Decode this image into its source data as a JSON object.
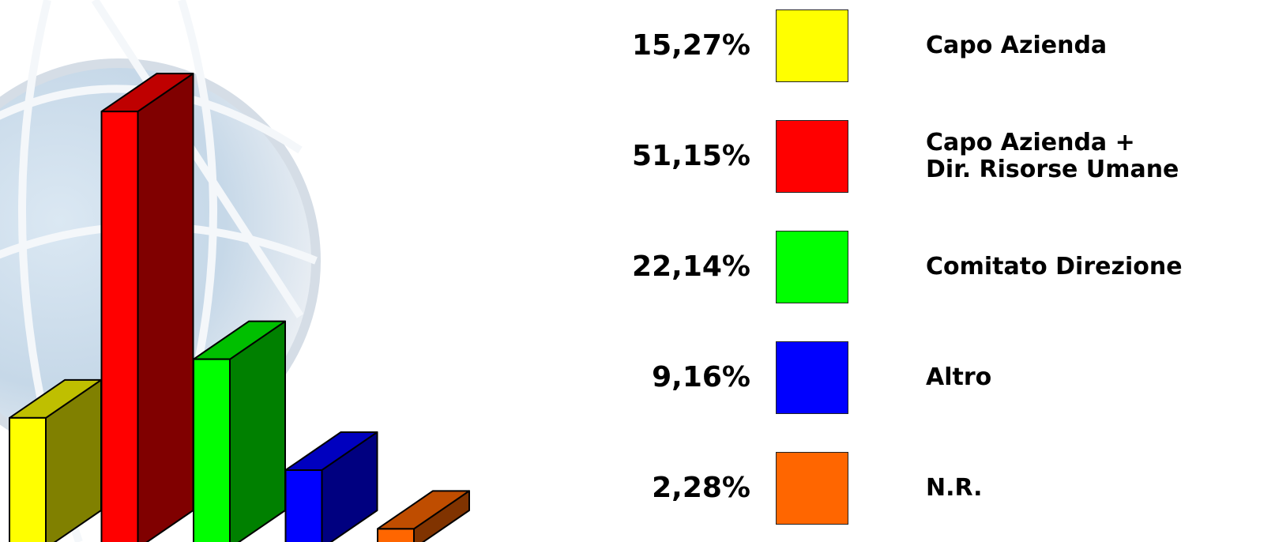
{
  "chart_data": {
    "type": "bar3d",
    "categories": [
      "Capo Azienda",
      "Capo Azienda +\nDir. Risorse Umane",
      "Comitato Direzione",
      "Altro",
      "N.R."
    ],
    "values": [
      15.27,
      51.15,
      22.14,
      9.16,
      2.28
    ],
    "value_labels": [
      "15,27%",
      "51,15%",
      "22,14%",
      "9,16%",
      "2,28%"
    ],
    "colors": [
      "#ffff00",
      "#ff0000",
      "#00ff00",
      "#0000ff",
      "#ff6600"
    ]
  }
}
